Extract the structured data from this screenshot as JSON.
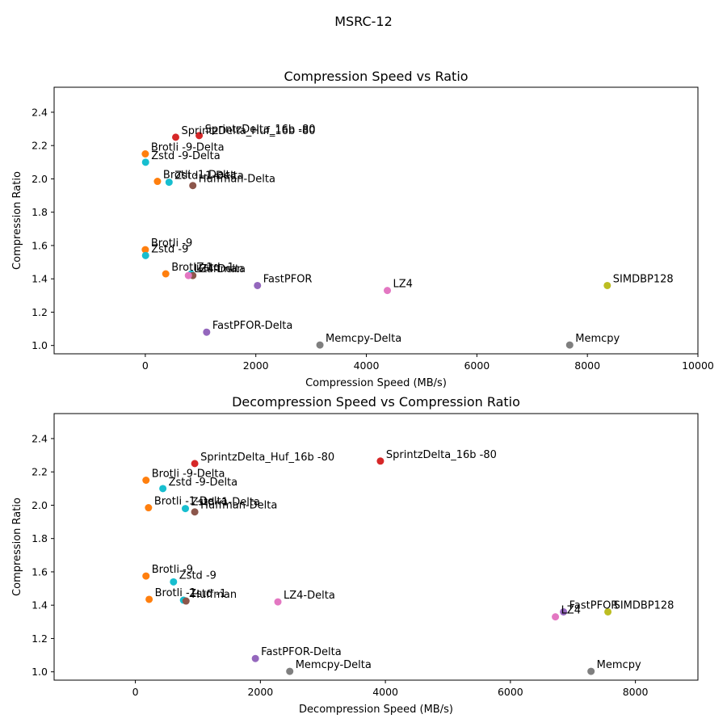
{
  "figure_title": "MSRC-12",
  "colors": {
    "Brotli": "#ff7f0e",
    "Zstd": "#17becf",
    "Sprintz": "#d62728",
    "Huffman": "#8c564b",
    "FastPFOR": "#9467bd",
    "LZ4": "#e377c2",
    "SIMDBP128": "#bcbd22",
    "Memcpy": "#7f7f7f"
  },
  "chart_data": [
    {
      "type": "scatter",
      "title": "Compression Speed vs Ratio",
      "xlabel": "Compression Speed (MB/s)",
      "ylabel": "Compression Ratio",
      "xlim": [
        -1650,
        10000
      ],
      "ylim": [
        0.95,
        2.55
      ],
      "xticks": [
        0,
        2000,
        4000,
        6000,
        8000,
        10000
      ],
      "yticks": [
        1.0,
        1.2,
        1.4,
        1.6,
        1.8,
        2.0,
        2.2,
        2.4
      ],
      "grid": false,
      "points": [
        {
          "label": "SprintzDelta_16b -80",
          "x": 975,
          "y": 2.26,
          "group": "Sprintz"
        },
        {
          "label": "SprintzDelta_Huf_16b -80",
          "x": 550,
          "y": 2.25,
          "group": "Sprintz"
        },
        {
          "label": "Brotli -9-Delta",
          "x": 0,
          "y": 2.15,
          "group": "Brotli"
        },
        {
          "label": "Zstd -9-Delta",
          "x": 5,
          "y": 2.1,
          "group": "Zstd"
        },
        {
          "label": "Brotli -1-Delta",
          "x": 220,
          "y": 1.985,
          "group": "Brotli"
        },
        {
          "label": "Zstd -1-Delta",
          "x": 430,
          "y": 1.98,
          "group": "Zstd"
        },
        {
          "label": "Huffman-Delta",
          "x": 860,
          "y": 1.96,
          "group": "Huffman"
        },
        {
          "label": "Brotli -9",
          "x": 0,
          "y": 1.575,
          "group": "Brotli"
        },
        {
          "label": "Zstd -9",
          "x": 5,
          "y": 1.54,
          "group": "Zstd"
        },
        {
          "label": "Brotli -1",
          "x": 370,
          "y": 1.43,
          "group": "Brotli"
        },
        {
          "label": "Zstd -1",
          "x": 830,
          "y": 1.43,
          "group": "Zstd"
        },
        {
          "label": "Huffman",
          "x": 860,
          "y": 1.42,
          "group": "Huffman"
        },
        {
          "label": "LZ4-Delta",
          "x": 780,
          "y": 1.42,
          "group": "LZ4"
        },
        {
          "label": "FastPFOR",
          "x": 2030,
          "y": 1.36,
          "group": "FastPFOR"
        },
        {
          "label": "LZ4",
          "x": 4380,
          "y": 1.33,
          "group": "LZ4"
        },
        {
          "label": "SIMDBP128",
          "x": 8360,
          "y": 1.36,
          "group": "SIMDBP128"
        },
        {
          "label": "FastPFOR-Delta",
          "x": 1110,
          "y": 1.08,
          "group": "FastPFOR"
        },
        {
          "label": "Memcpy-Delta",
          "x": 3160,
          "y": 1.003,
          "group": "Memcpy"
        },
        {
          "label": "Memcpy",
          "x": 7680,
          "y": 1.003,
          "group": "Memcpy"
        }
      ]
    },
    {
      "type": "scatter",
      "title": "Decompression Speed vs Compression Ratio",
      "xlabel": "Decompression Speed (MB/s)",
      "ylabel": "Compression Ratio",
      "xlim": [
        -1300,
        9000
      ],
      "ylim": [
        0.95,
        2.55
      ],
      "xticks": [
        0,
        2000,
        4000,
        6000,
        8000
      ],
      "yticks": [
        1.0,
        1.2,
        1.4,
        1.6,
        1.8,
        2.0,
        2.2,
        2.4
      ],
      "grid": false,
      "points": [
        {
          "label": "SprintzDelta_Huf_16b -80",
          "x": 950,
          "y": 2.25,
          "group": "Sprintz"
        },
        {
          "label": "SprintzDelta_16b -80",
          "x": 3920,
          "y": 2.265,
          "group": "Sprintz"
        },
        {
          "label": "Brotli -9-Delta",
          "x": 170,
          "y": 2.15,
          "group": "Brotli"
        },
        {
          "label": "Zstd -9-Delta",
          "x": 440,
          "y": 2.1,
          "group": "Zstd"
        },
        {
          "label": "Brotli -1-Delta",
          "x": 210,
          "y": 1.985,
          "group": "Brotli"
        },
        {
          "label": "Zstd -1-Delta",
          "x": 800,
          "y": 1.98,
          "group": "Zstd"
        },
        {
          "label": "Huffman-Delta",
          "x": 950,
          "y": 1.96,
          "group": "Huffman"
        },
        {
          "label": "Brotli -9",
          "x": 170,
          "y": 1.575,
          "group": "Brotli"
        },
        {
          "label": "Zstd -9",
          "x": 610,
          "y": 1.54,
          "group": "Zstd"
        },
        {
          "label": "Brotli -1",
          "x": 220,
          "y": 1.435,
          "group": "Brotli"
        },
        {
          "label": "Zstd -1",
          "x": 770,
          "y": 1.43,
          "group": "Zstd"
        },
        {
          "label": "Huffman",
          "x": 810,
          "y": 1.425,
          "group": "Huffman"
        },
        {
          "label": "LZ4-Delta",
          "x": 2280,
          "y": 1.42,
          "group": "LZ4"
        },
        {
          "label": "FastPFOR",
          "x": 6850,
          "y": 1.36,
          "group": "FastPFOR"
        },
        {
          "label": "LZ4",
          "x": 6720,
          "y": 1.33,
          "group": "LZ4"
        },
        {
          "label": "SIMDBP128",
          "x": 7560,
          "y": 1.36,
          "group": "SIMDBP128"
        },
        {
          "label": "FastPFOR-Delta",
          "x": 1920,
          "y": 1.08,
          "group": "FastPFOR"
        },
        {
          "label": "Memcpy-Delta",
          "x": 2470,
          "y": 1.003,
          "group": "Memcpy"
        },
        {
          "label": "Memcpy",
          "x": 7290,
          "y": 1.003,
          "group": "Memcpy"
        }
      ]
    }
  ]
}
